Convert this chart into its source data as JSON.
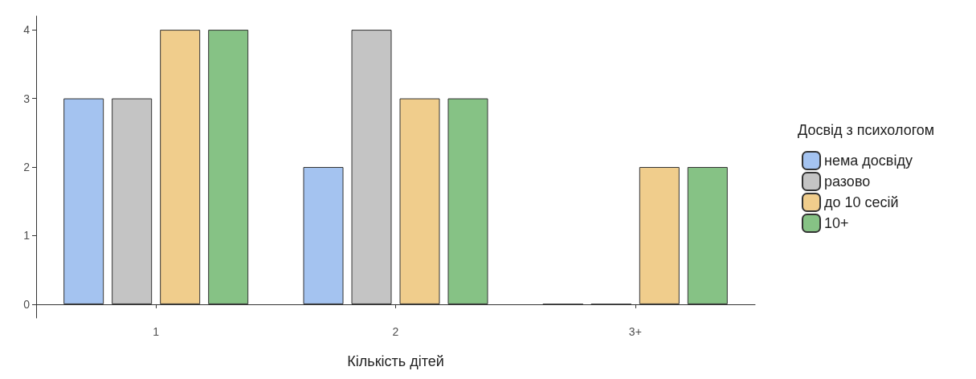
{
  "chart_data": {
    "type": "bar",
    "xlabel": "Кількість дітей",
    "legend_title": "Досвід з психологом",
    "categories": [
      "1",
      "2",
      "3+"
    ],
    "series": [
      {
        "name": "нема досвіду",
        "color": "#a4c3f0",
        "values": [
          3,
          2,
          0
        ]
      },
      {
        "name": "разово",
        "color": "#c4c4c4",
        "values": [
          3,
          4,
          0
        ]
      },
      {
        "name": "до 10 сесій",
        "color": "#f0cd8c",
        "values": [
          4,
          3,
          2
        ]
      },
      {
        "name": "10+",
        "color": "#86c285",
        "values": [
          4,
          3,
          2
        ]
      }
    ],
    "ylim": [
      -0.2,
      4.2
    ],
    "yticks": [
      0,
      1,
      2,
      3,
      4
    ],
    "grid": false,
    "legend": "right"
  }
}
